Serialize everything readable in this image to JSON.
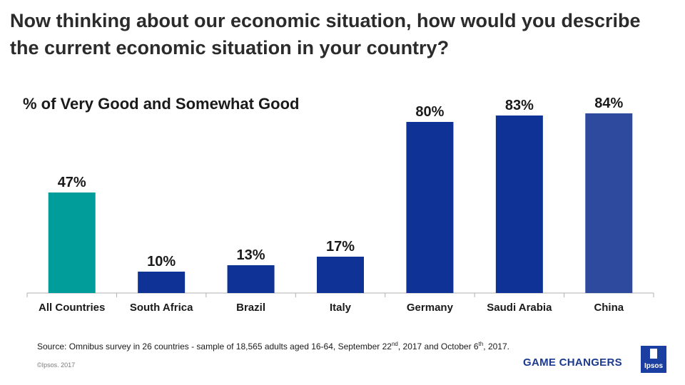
{
  "header": {
    "title": "Now thinking about our economic situation, how would you describe the current economic situation in your country?"
  },
  "chart_data": {
    "type": "bar",
    "title": "% of Very Good and Somewhat Good",
    "categories": [
      "All Countries",
      "South Africa",
      "Brazil",
      "Italy",
      "Germany",
      "Saudi Arabia",
      "China"
    ],
    "values": [
      47,
      10,
      13,
      17,
      80,
      83,
      84
    ],
    "labels": [
      "47%",
      "10%",
      "13%",
      "17%",
      "80%",
      "83%",
      "84%"
    ],
    "colors": [
      "#009d9a",
      "#0e3296",
      "#0e3296",
      "#0e3296",
      "#0e3296",
      "#0e3296",
      "#2e4a9f"
    ],
    "xlabel": "",
    "ylabel": "",
    "ylim": [
      0,
      100
    ]
  },
  "footer": {
    "source_prefix": "Source: Omnibus survey in 26 countries - sample of 18,565 adults aged 16-64,  September 22",
    "source_sup1": "nd",
    "source_mid": ", 2017 and October 6",
    "source_sup2": "th",
    "source_suffix": ", 2017.",
    "copyright": "©Ipsos. 2017",
    "brand": "GAME CHANGERS",
    "logo_text": "Ipsos"
  }
}
